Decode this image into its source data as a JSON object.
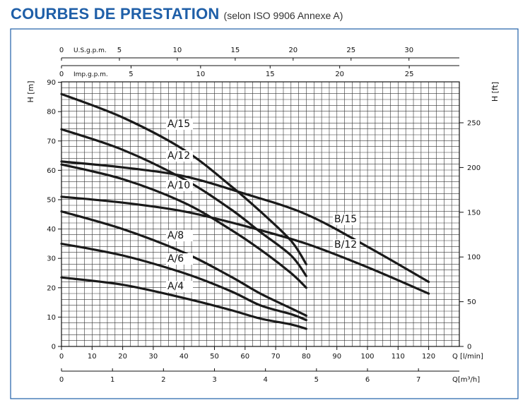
{
  "title": "COURBES DE PRESTATION",
  "subtitle": "(selon ISO 9906 Annexe A)",
  "chart_data": {
    "type": "line",
    "grid": true,
    "colors": {
      "curve": "#1a1a1a",
      "grid": "#333333",
      "title": "#1f5fa8"
    },
    "y_left": {
      "label": "H [m]",
      "range": [
        0,
        90
      ],
      "ticks": [
        0,
        10,
        20,
        30,
        40,
        50,
        60,
        70,
        80,
        90
      ]
    },
    "y_right": {
      "label": "H [ft]",
      "ticks": [
        0,
        50,
        100,
        150,
        200,
        250
      ]
    },
    "x_main": {
      "label": "Q [l/min]",
      "range": [
        0,
        130
      ],
      "ticks": [
        0,
        10,
        20,
        30,
        40,
        50,
        60,
        70,
        80,
        90,
        100,
        110,
        120
      ]
    },
    "x_m3h": {
      "label": "Q[m³/h]",
      "ticks": [
        0,
        1,
        2,
        3,
        4,
        5,
        6,
        7
      ]
    },
    "x_usgpm": {
      "label": "U.S.g.p.m.",
      "ticks": [
        0,
        5,
        10,
        15,
        20,
        25,
        30
      ]
    },
    "x_impgpm": {
      "label": "Imp.g.p.m.",
      "ticks": [
        0,
        5,
        10,
        15,
        20,
        25
      ]
    },
    "series": [
      {
        "name": "A/15",
        "points": [
          [
            0,
            86
          ],
          [
            20,
            78
          ],
          [
            40,
            67
          ],
          [
            55,
            55
          ],
          [
            65,
            46
          ],
          [
            75,
            36
          ],
          [
            80,
            28
          ]
        ]
      },
      {
        "name": "A/12",
        "points": [
          [
            0,
            74
          ],
          [
            20,
            67
          ],
          [
            40,
            57
          ],
          [
            55,
            47
          ],
          [
            65,
            39
          ],
          [
            75,
            31
          ],
          [
            80,
            24
          ]
        ]
      },
      {
        "name": "A/10",
        "points": [
          [
            0,
            62
          ],
          [
            20,
            57
          ],
          [
            40,
            49
          ],
          [
            55,
            40
          ],
          [
            65,
            33
          ],
          [
            75,
            25
          ],
          [
            80,
            20
          ]
        ]
      },
      {
        "name": "A/8",
        "points": [
          [
            0,
            46
          ],
          [
            20,
            40
          ],
          [
            40,
            32
          ],
          [
            55,
            24
          ],
          [
            65,
            18
          ],
          [
            75,
            13
          ],
          [
            80,
            10.5
          ]
        ]
      },
      {
        "name": "A/6",
        "points": [
          [
            0,
            35
          ],
          [
            20,
            31
          ],
          [
            40,
            25
          ],
          [
            55,
            19
          ],
          [
            65,
            14
          ],
          [
            75,
            11
          ],
          [
            80,
            9
          ]
        ]
      },
      {
        "name": "A/4",
        "points": [
          [
            0,
            23.5
          ],
          [
            20,
            21
          ],
          [
            40,
            16.5
          ],
          [
            55,
            12.5
          ],
          [
            65,
            9.5
          ],
          [
            75,
            7.5
          ],
          [
            80,
            6
          ]
        ]
      },
      {
        "name": "B/15",
        "points": [
          [
            0,
            63
          ],
          [
            20,
            61
          ],
          [
            40,
            58
          ],
          [
            60,
            52
          ],
          [
            80,
            45
          ],
          [
            100,
            34
          ],
          [
            120,
            22
          ]
        ]
      },
      {
        "name": "B/12",
        "points": [
          [
            0,
            51
          ],
          [
            20,
            49
          ],
          [
            40,
            46
          ],
          [
            60,
            41
          ],
          [
            80,
            35
          ],
          [
            100,
            27
          ],
          [
            120,
            18
          ]
        ]
      }
    ]
  }
}
